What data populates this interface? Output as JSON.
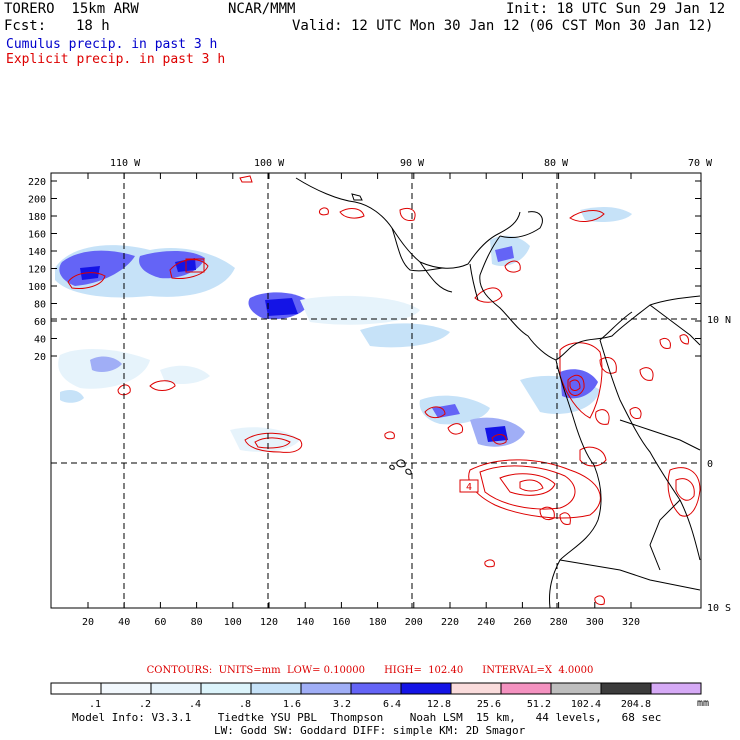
{
  "header": {
    "model": "TORERO  15km ARW",
    "org": "NCAR/MMM",
    "init": "Init: 18 UTC Sun 29 Jan 12",
    "fcst_label": "Fcst:",
    "fcst_value": "18 h",
    "valid": "Valid: 12 UTC Mon 30 Jan 12 (06 CST Mon 30 Jan 12)",
    "cumulus": "Cumulus precip. in past 3 h",
    "explicit": "Explicit precip. in past 3 h"
  },
  "map": {
    "top_labels": [
      "110 W",
      "100 W",
      "90 W",
      "80 W",
      "70 W"
    ],
    "right_labels": [
      "10 N",
      "0",
      "10 S"
    ],
    "y_ticks": [
      "220",
      "200",
      "180",
      "160",
      "140",
      "120",
      "100",
      "80",
      "60",
      "40",
      "20"
    ],
    "x_ticks": [
      "20",
      "40",
      "60",
      "80",
      "100",
      "120",
      "140",
      "160",
      "180",
      "200",
      "220",
      "240",
      "260",
      "280",
      "300",
      "320"
    ],
    "contour_label": "4"
  },
  "contours_info": {
    "text": "CONTOURS:  UNITS=mm  LOW= 0.10000      HIGH=  102.40      INTERVAL=X  4.0000"
  },
  "legend": {
    "labels": [
      ".1",
      ".2",
      ".4",
      ".8",
      "1.6",
      "3.2",
      "6.4",
      "12.8",
      "25.6",
      "51.2",
      "102.4",
      "204.8"
    ],
    "unit": "mm",
    "colors": [
      "#ffffff",
      "#f2f8fd",
      "#e6f3fb",
      "#dcf4fb",
      "#c6e2f8",
      "#a0aef6",
      "#6464f6",
      "#1414e6",
      "#fadcdc",
      "#f492c0",
      "#bebebe",
      "#3c3c3c",
      "#d6aaf6"
    ]
  },
  "footer": {
    "line1": "Model Info: V3.3.1    Tiedtke YSU PBL  Thompson    Noah LSM  15 km,   44 levels,   68 sec",
    "line2": "LW: Godd SW: Goddard DIFF: simple KM: 2D Smagor"
  }
}
